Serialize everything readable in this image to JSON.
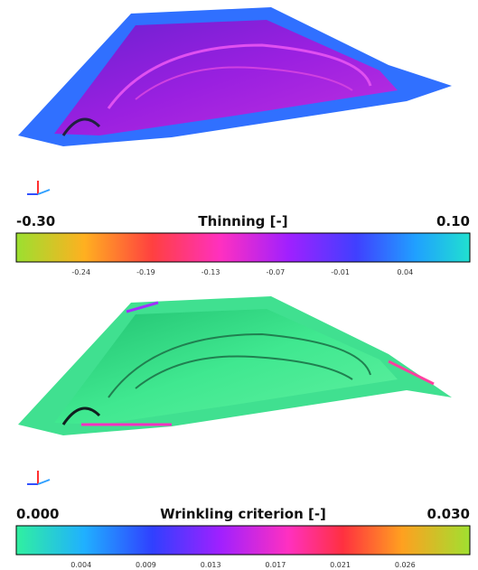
{
  "panels": [
    {
      "title": "Thinning  [-]",
      "min_label": "-0.30",
      "max_label": "0.10",
      "tick_labels": [
        "-0.24",
        "-0.19",
        "-0.13",
        "-0.07",
        "-0.01",
        "0.04"
      ]
    },
    {
      "title": "Wrinkling criterion [-]",
      "min_label": "0.000",
      "max_label": "0.030",
      "tick_labels": [
        "0.004",
        "0.009",
        "0.013",
        "0.017",
        "0.021",
        "0.026"
      ]
    }
  ]
}
